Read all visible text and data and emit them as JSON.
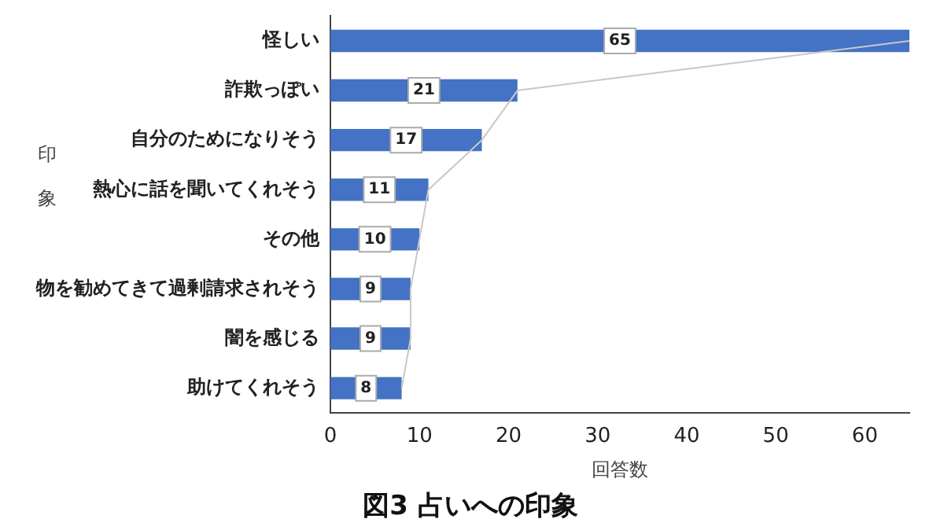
{
  "chart_data": {
    "type": "bar",
    "orientation": "horizontal",
    "title": "図3 占いへの印象",
    "xlabel": "回答数",
    "ylabel": "印象",
    "categories": [
      "怪しい",
      "詐欺っぽい",
      "自分のためになりそう",
      "熱心に話を聞いてくれそう",
      "その他",
      "物を勧めてきて過剰請求されそう",
      "闇を感じる",
      "助けてくれそう"
    ],
    "series": [
      {
        "color": "#4472c4",
        "values": [
          65,
          21,
          17,
          11,
          10,
          9,
          9,
          8
        ],
        "value_labels": [
          "65",
          "21",
          "17",
          "11",
          "10",
          "9",
          "9",
          "8"
        ]
      },
      {
        "type": "line",
        "color": "#c8c8c8",
        "values": [
          65,
          21,
          17,
          11,
          10,
          9,
          9,
          8
        ]
      }
    ],
    "xlim": [
      0,
      65
    ],
    "xticks": [
      0,
      10,
      20,
      30,
      40,
      50,
      60
    ],
    "grid": false,
    "legend": false
  }
}
